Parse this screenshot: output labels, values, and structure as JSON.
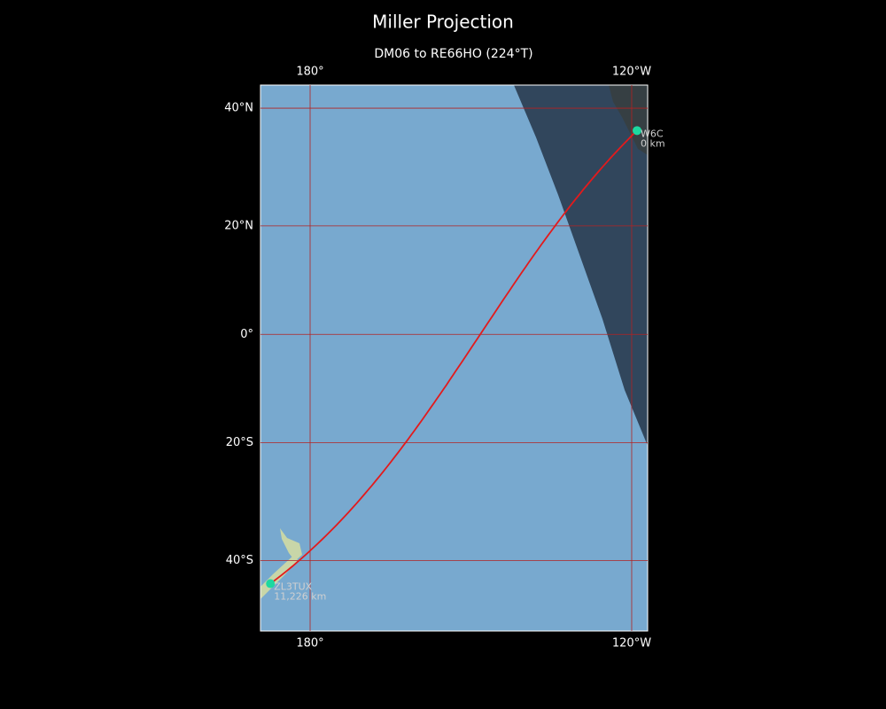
{
  "map": {
    "title": "Miller Projection",
    "subtitle": "DM06 to RE66HO (224°T)",
    "projection": "miller",
    "lonlim": [
      170.74,
      242.98
    ],
    "latlim": [
      -50.6,
      43.6
    ],
    "lonticks": [
      {
        "value": 180,
        "label": "180°"
      },
      {
        "value": 240,
        "label": "120°W"
      }
    ],
    "latticks": [
      {
        "value": 40,
        "label": "40°N"
      },
      {
        "value": 20,
        "label": "20°N"
      },
      {
        "value": 0,
        "label": "0°"
      },
      {
        "value": -20,
        "label": "20°S"
      },
      {
        "value": -40,
        "label": "40°S"
      }
    ],
    "grid_color": "#b22222",
    "route_color": "#e31a1c",
    "station_color": "#1dd8a0",
    "stations": [
      {
        "name": "W6C",
        "distance": "0 km",
        "lon": 241,
        "lat": 36.4
      },
      {
        "name": "ZL3TUX",
        "distance": "11,226 km",
        "lon": 172.6,
        "lat": -43.6
      }
    ]
  }
}
